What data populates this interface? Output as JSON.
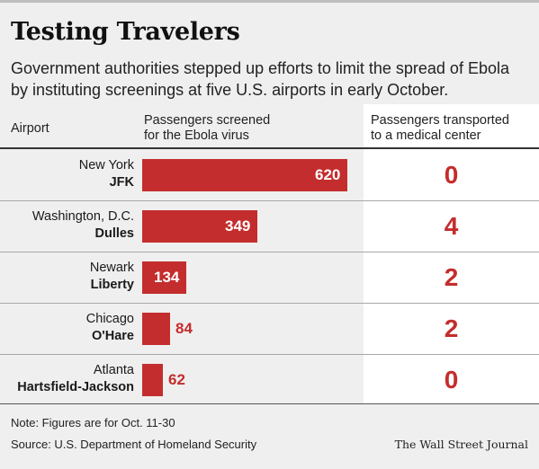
{
  "header": {
    "title": "Testing Travelers",
    "subtitle": "Government authorities stepped up efforts to limit the spread of Ebola by instituting screenings at five U.S. airports in early October."
  },
  "columns": {
    "airport": "Airport",
    "passengers_line1": "Passengers screened",
    "passengers_line2": "for the Ebola virus",
    "transported_line1": "Passengers transported",
    "transported_line2": "to a medical center"
  },
  "chart_data": {
    "type": "bar",
    "orientation": "horizontal",
    "title": "Testing Travelers",
    "subtitle": "Government authorities stepped up efforts to limit the spread of Ebola by instituting screenings at five U.S. airports in early October.",
    "categories": [
      {
        "city": "New York",
        "airport": "JFK"
      },
      {
        "city": "Washington, D.C.",
        "airport": "Dulles"
      },
      {
        "city": "Newark",
        "airport": "Liberty"
      },
      {
        "city": "Chicago",
        "airport": "O'Hare"
      },
      {
        "city": "Atlanta",
        "airport": "Hartsfield-Jackson"
      }
    ],
    "series": [
      {
        "name": "Passengers screened for the Ebola virus",
        "values": [
          620,
          349,
          134,
          84,
          62
        ]
      },
      {
        "name": "Passengers transported to a medical center",
        "values": [
          0,
          4,
          2,
          2,
          0
        ]
      }
    ],
    "xlim": [
      0,
      620
    ],
    "grid": false,
    "colors": {
      "bar": "#c42d2d",
      "transported_text": "#c42d2d",
      "panel": "#ffffff",
      "background": "#efefef"
    }
  },
  "footer": {
    "note": "Note: Figures are for Oct. 11-30",
    "source": "Source: U.S. Department of Homeland Security",
    "credit": "The Wall Street Journal"
  }
}
